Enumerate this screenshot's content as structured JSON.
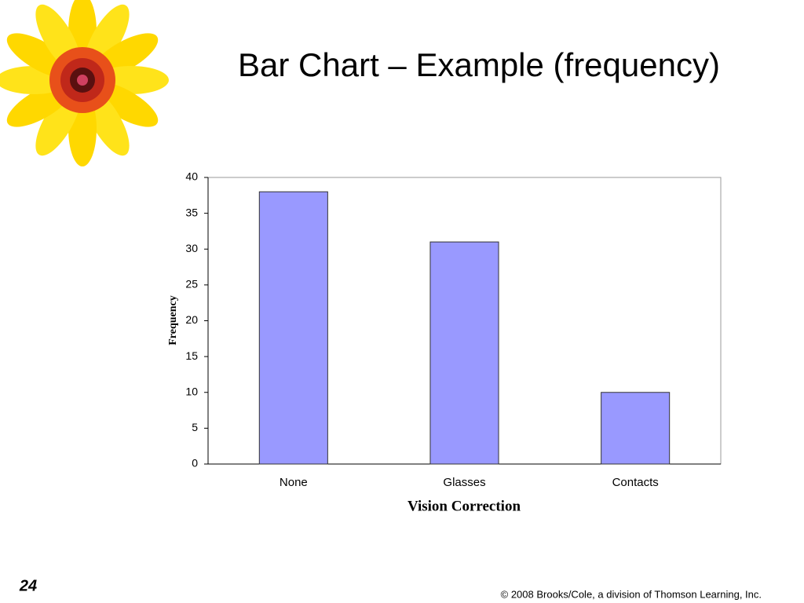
{
  "chart_data": {
    "type": "bar",
    "title": "Bar Chart – Example (frequency)",
    "categories": [
      "None",
      "Glasses",
      "Contacts"
    ],
    "values": [
      38,
      31,
      10
    ],
    "color": "#9999ff",
    "ylim": [
      0,
      40
    ],
    "yticks": [
      0,
      5,
      10,
      15,
      20,
      25,
      30,
      35,
      40
    ],
    "grid": false,
    "x_label": "Vision Correction",
    "y_label": "Frequency"
  },
  "slide": {
    "number": "24",
    "footer": "© 2008 Brooks/Cole, a division of Thomson Learning, Inc."
  }
}
